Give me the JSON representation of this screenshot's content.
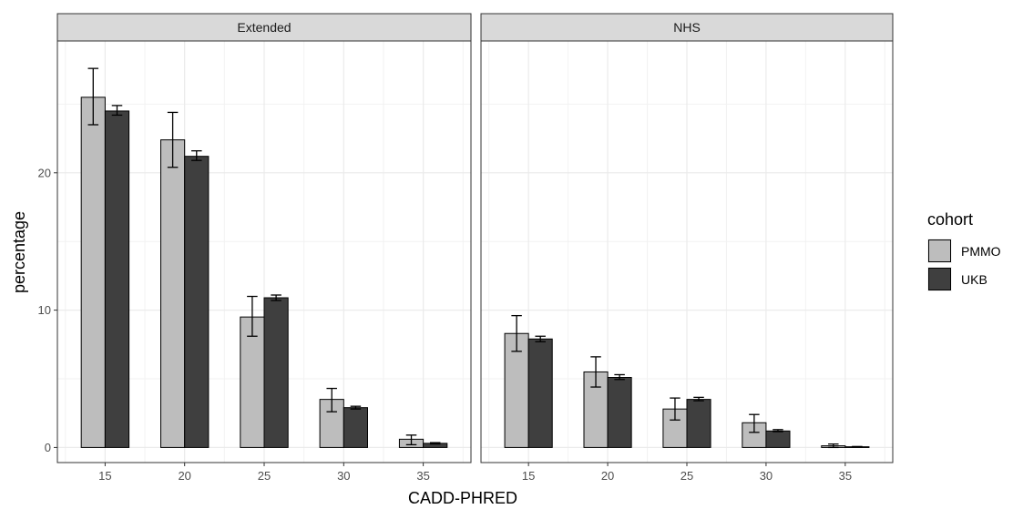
{
  "chart_data": {
    "type": "bar",
    "facet_variable_values": [
      "Extended",
      "NHS"
    ],
    "categories": [
      "15",
      "20",
      "25",
      "30",
      "35"
    ],
    "xlabel": "CADD-PHRED",
    "ylabel": "percentage",
    "ylim": [
      -1.1,
      29.6
    ],
    "yticks": [
      0,
      10,
      20
    ],
    "grid": true,
    "legend": {
      "title": "cohort",
      "position": "right",
      "entries": [
        "PMMO",
        "UKB"
      ]
    },
    "colors": {
      "PMMO": "#bdbdbd",
      "UKB": "#3f3f3f"
    },
    "panels": [
      {
        "name": "Extended",
        "series": [
          {
            "name": "PMMO",
            "values": [
              25.5,
              22.4,
              9.5,
              3.5,
              0.6
            ],
            "err_low": [
              23.5,
              20.4,
              8.1,
              2.6,
              0.2
            ],
            "err_high": [
              27.6,
              24.4,
              11.0,
              4.3,
              0.9
            ]
          },
          {
            "name": "UKB",
            "values": [
              24.5,
              21.2,
              10.9,
              2.9,
              0.3
            ],
            "err_low": [
              24.2,
              20.9,
              10.7,
              2.8,
              0.25
            ],
            "err_high": [
              24.9,
              21.6,
              11.1,
              3.0,
              0.35
            ]
          }
        ]
      },
      {
        "name": "NHS",
        "series": [
          {
            "name": "PMMO",
            "values": [
              8.3,
              5.5,
              2.8,
              1.8,
              0.12
            ],
            "err_low": [
              7.0,
              4.4,
              2.0,
              1.1,
              0.0
            ],
            "err_high": [
              9.6,
              6.6,
              3.6,
              2.4,
              0.25
            ]
          },
          {
            "name": "UKB",
            "values": [
              7.9,
              5.1,
              3.5,
              1.2,
              0.05
            ],
            "err_low": [
              7.7,
              4.95,
              3.4,
              1.15,
              0.03
            ],
            "err_high": [
              8.1,
              5.3,
              3.65,
              1.3,
              0.07
            ]
          }
        ]
      }
    ]
  }
}
